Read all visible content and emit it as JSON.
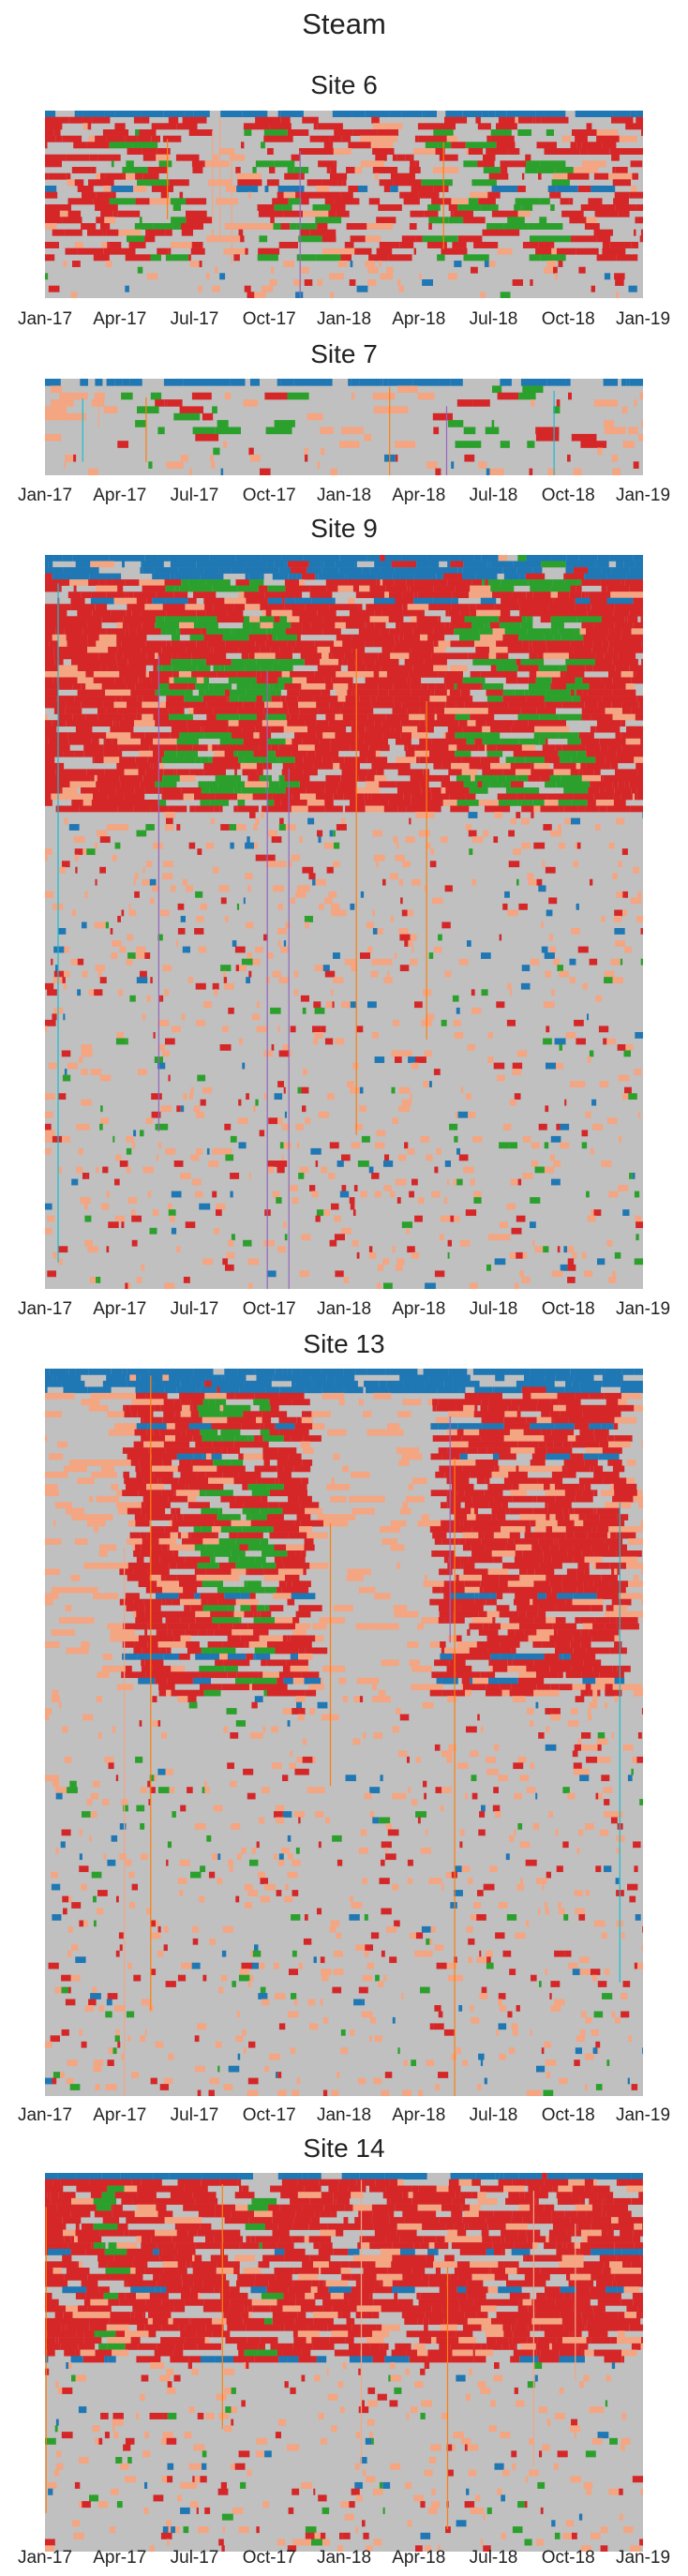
{
  "figure": {
    "title": "Steam"
  },
  "colors": {
    "background_gray": "#c0c0c0",
    "red": "#d62728",
    "green": "#2ca02c",
    "blue": "#1f77b4",
    "salmon": "#f4a582",
    "orange": "#ff7f0e",
    "teal": "#17becf",
    "purple": "#9467bd"
  },
  "chart_data": [
    {
      "type": "heatmap",
      "title": "Site 6",
      "x_ticks": [
        "Jan-17",
        "Apr-17",
        "Jul-17",
        "Oct-17",
        "Jan-18",
        "Apr-18",
        "Jul-18",
        "Oct-18",
        "Jan-19"
      ],
      "x_range": [
        "2017-01-01",
        "2019-01-01"
      ],
      "n_rows": 30,
      "seed": 11,
      "top_band_color": "blue",
      "base_density": 0.55,
      "dense_periods": [
        [
          "2017-01-01",
          "2017-07-01"
        ],
        [
          "2017-08-15",
          "2019-01-01"
        ]
      ],
      "green_periods": [
        [
          "2017-03-15",
          "2017-06-15"
        ],
        [
          "2017-09-01",
          "2017-11-30"
        ],
        [
          "2018-04-01",
          "2018-09-30"
        ]
      ],
      "active_row_fraction": 0.8
    },
    {
      "type": "heatmap",
      "title": "Site 7",
      "x_ticks": [
        "Jan-17",
        "Apr-17",
        "Jul-17",
        "Oct-17",
        "Jan-18",
        "Apr-18",
        "Jul-18",
        "Oct-18",
        "Jan-19"
      ],
      "x_range": [
        "2017-01-01",
        "2019-01-01"
      ],
      "n_rows": 14,
      "seed": 23,
      "top_band_color": "blue",
      "base_density": 0.2,
      "dense_periods": [
        [
          "2017-03-20",
          "2017-11-15"
        ],
        [
          "2018-04-15",
          "2018-10-31"
        ]
      ],
      "green_periods": [
        [
          "2017-04-01",
          "2017-10-31"
        ],
        [
          "2018-04-20",
          "2018-10-15"
        ]
      ],
      "active_row_fraction": 0.7
    },
    {
      "type": "heatmap",
      "title": "Site 9",
      "x_ticks": [
        "Jan-17",
        "Apr-17",
        "Jul-17",
        "Oct-17",
        "Jan-18",
        "Apr-18",
        "Jul-18",
        "Oct-18",
        "Jan-19"
      ],
      "x_range": [
        "2017-01-01",
        "2019-01-01"
      ],
      "n_rows": 120,
      "seed": 37,
      "top_band_color": "blue",
      "base_density": 0.9,
      "dense_periods": [
        [
          "2017-01-01",
          "2019-01-01"
        ]
      ],
      "green_periods": [
        [
          "2017-05-15",
          "2017-10-15"
        ],
        [
          "2018-05-15",
          "2018-10-15"
        ]
      ],
      "active_row_fraction": 0.35
    },
    {
      "type": "heatmap",
      "title": "Site 13",
      "x_ticks": [
        "Jan-17",
        "Apr-17",
        "Jul-17",
        "Oct-17",
        "Jan-18",
        "Apr-18",
        "Jul-18",
        "Oct-18",
        "Jan-19"
      ],
      "x_range": [
        "2017-01-01",
        "2019-01-01"
      ],
      "n_rows": 120,
      "seed": 53,
      "top_band_color": "blue",
      "base_density": 0.85,
      "dense_periods": [
        [
          "2017-04-01",
          "2017-11-15"
        ],
        [
          "2018-04-15",
          "2018-12-01"
        ]
      ],
      "green_periods": [
        [
          "2017-07-01",
          "2017-10-01"
        ]
      ],
      "active_row_fraction": 0.45
    },
    {
      "type": "heatmap",
      "title": "Site 14",
      "x_ticks": [
        "Jan-17",
        "Apr-17",
        "Jul-17",
        "Oct-17",
        "Jan-18",
        "Apr-18",
        "Jul-18",
        "Oct-18",
        "Jan-19"
      ],
      "x_range": [
        "2017-01-01",
        "2019-01-01"
      ],
      "n_rows": 60,
      "seed": 71,
      "top_band_color": "blue",
      "base_density": 0.8,
      "dense_periods": [
        [
          "2017-01-01",
          "2019-01-01"
        ]
      ],
      "green_periods": [
        [
          "2017-03-01",
          "2017-03-20"
        ],
        [
          "2017-09-01",
          "2017-10-01"
        ]
      ],
      "active_row_fraction": 0.5
    }
  ]
}
